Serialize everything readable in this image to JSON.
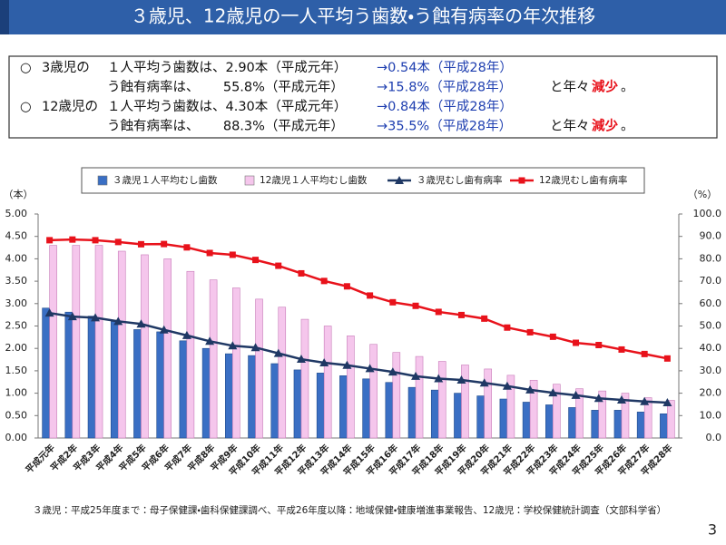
{
  "header": {
    "title": "３歳児、12歳児の一人平均う歯数・う蝕有病率の年次推移"
  },
  "summary": {
    "lines": [
      {
        "bullet": "○",
        "subject": "3歳児の",
        "text": "１人平均う歯数は、2.90本（平成元年）",
        "result": "→0.54本（平成28年）"
      },
      {
        "text": "う蝕有病率は、　　 55.8%（平成元年）",
        "result": "→15.8%（平成28年）",
        "tail": "と年々",
        "emphasis": "減少",
        "end": "。"
      },
      {
        "bullet": "○",
        "subject": "12歳児の",
        "text": "１人平均う歯数は、4.30本（平成元年）",
        "result": "→0.84本（平成28年）"
      },
      {
        "text": "う蝕有病率は、　　 88.3%（平成元年）",
        "result": "→35.5%（平成28年）",
        "tail": "と年々",
        "emphasis": "減少",
        "end": "。"
      }
    ]
  },
  "chart_data": {
    "type": "bar",
    "ylabel": "（本）",
    "y2label": "（%）",
    "categories": [
      "平成元年",
      "平成2年",
      "平成3年",
      "平成4年",
      "平成5年",
      "平成6年",
      "平成7年",
      "平成8年",
      "平成9年",
      "平成10年",
      "平成11年",
      "平成12年",
      "平成13年",
      "平成14年",
      "平成15年",
      "平成16年",
      "平成17年",
      "平成18年",
      "平成19年",
      "平成20年",
      "平成21年",
      "平成22年",
      "平成23年",
      "平成24年",
      "平成25年",
      "平成26年",
      "平成27年",
      "平成28年"
    ],
    "series": [
      {
        "name": "３歳児１人平均むし歯数",
        "type": "bar",
        "color": "#3a6fc4",
        "values": [
          2.9,
          2.81,
          2.72,
          2.6,
          2.42,
          2.37,
          2.17,
          2.0,
          1.88,
          1.84,
          1.66,
          1.52,
          1.45,
          1.39,
          1.32,
          1.24,
          1.13,
          1.07,
          1.0,
          0.94,
          0.87,
          0.8,
          0.74,
          0.68,
          0.62,
          0.62,
          0.58,
          0.54
        ]
      },
      {
        "name": "12歳児１人平均むし歯数",
        "type": "bar",
        "color": "#f5c6ec",
        "values": [
          4.3,
          4.3,
          4.3,
          4.17,
          4.09,
          4.0,
          3.72,
          3.53,
          3.35,
          3.1,
          2.92,
          2.65,
          2.5,
          2.28,
          2.09,
          1.91,
          1.82,
          1.71,
          1.63,
          1.54,
          1.4,
          1.29,
          1.2,
          1.1,
          1.05,
          1.0,
          0.9,
          0.84
        ]
      },
      {
        "name": "３歳児むし歯有病率",
        "type": "line",
        "marker": "triangle",
        "axis": "y2",
        "color": "#1f3864",
        "values": [
          55.8,
          54.2,
          53.7,
          52.1,
          50.9,
          48.3,
          45.8,
          43.2,
          41.2,
          40.4,
          37.8,
          35.2,
          33.6,
          32.5,
          31.0,
          29.5,
          27.6,
          26.5,
          25.9,
          24.6,
          23.2,
          21.5,
          20.2,
          19.1,
          17.7,
          17.0,
          16.3,
          15.8
        ]
      },
      {
        "name": "12歳児むし歯有病率",
        "type": "line",
        "marker": "square",
        "axis": "y2",
        "color": "#e8121b",
        "values": [
          88.3,
          88.6,
          88.3,
          87.5,
          86.5,
          86.6,
          85.1,
          82.6,
          81.8,
          79.5,
          76.9,
          73.5,
          70.1,
          67.7,
          63.6,
          60.6,
          59.0,
          56.3,
          54.9,
          53.3,
          49.3,
          47.2,
          45.2,
          42.5,
          41.5,
          39.5,
          37.5,
          35.5
        ]
      }
    ],
    "ylim": [
      0,
      5
    ],
    "yticks": [
      {
        "value": 0,
        "label": "0.00"
      },
      {
        "value": 0.5,
        "label": "0.50"
      },
      {
        "value": 1,
        "label": "1.00"
      },
      {
        "value": 1.5,
        "label": "1.50"
      },
      {
        "value": 2,
        "label": "2.00"
      },
      {
        "value": 2.5,
        "label": "2.50"
      },
      {
        "value": 3,
        "label": "3.00"
      },
      {
        "value": 3.5,
        "label": "3.50"
      },
      {
        "value": 4,
        "label": "4.00"
      },
      {
        "value": 4.5,
        "label": "4.50"
      },
      {
        "value": 5,
        "label": "5.00"
      }
    ],
    "y2lim": [
      0,
      100
    ],
    "y2ticks": [
      {
        "value": 0,
        "label": "0.0"
      },
      {
        "value": 10,
        "label": "10.0"
      },
      {
        "value": 20,
        "label": "20.0"
      },
      {
        "value": 30,
        "label": "30.0"
      },
      {
        "value": 40,
        "label": "40.0"
      },
      {
        "value": 50,
        "label": "50.0"
      },
      {
        "value": 60,
        "label": "60.0"
      },
      {
        "value": 70,
        "label": "70.0"
      },
      {
        "value": 80,
        "label": "80.0"
      },
      {
        "value": 90,
        "label": "90.0"
      },
      {
        "value": 100,
        "label": "100.0"
      }
    ],
    "grid": false,
    "legend": "top"
  },
  "footer": {
    "note": "３歳児：平成25年度まで：母子保健課・歯科保健課調べ、平成26年度以降：地域保健・健康増進事業報告、12歳児：学校保健統計調査（文部科学省）",
    "page": "3"
  }
}
